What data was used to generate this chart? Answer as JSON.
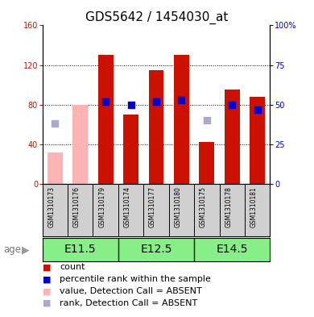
{
  "title": "GDS5642 / 1454030_at",
  "samples": [
    "GSM1310173",
    "GSM1310176",
    "GSM1310179",
    "GSM1310174",
    "GSM1310177",
    "GSM1310180",
    "GSM1310175",
    "GSM1310178",
    "GSM1310181"
  ],
  "count_values": [
    null,
    null,
    130,
    70,
    115,
    130,
    42,
    95,
    88
  ],
  "count_absent": [
    32,
    80,
    null,
    null,
    null,
    null,
    null,
    null,
    null
  ],
  "rank_values": [
    null,
    null,
    52,
    50,
    52,
    53,
    null,
    50,
    47
  ],
  "rank_absent": [
    38,
    null,
    null,
    null,
    null,
    null,
    40,
    null,
    null
  ],
  "age_groups": [
    {
      "label": "E11.5",
      "start": 0,
      "end": 3
    },
    {
      "label": "E12.5",
      "start": 3,
      "end": 6
    },
    {
      "label": "E14.5",
      "start": 6,
      "end": 9
    }
  ],
  "ylim_left": [
    0,
    160
  ],
  "ylim_right": [
    0,
    100
  ],
  "yticks_left": [
    0,
    40,
    80,
    120,
    160
  ],
  "yticks_right": [
    0,
    25,
    50,
    75,
    100
  ],
  "ytick_labels_right": [
    "0",
    "25",
    "50",
    "75",
    "100%"
  ],
  "bar_color_present": "#cc1100",
  "bar_color_absent": "#ffb3b3",
  "rank_color_present": "#0000cc",
  "rank_color_absent": "#aaaacc",
  "grid_color": "black",
  "sample_bg_color": "#d0d0d0",
  "age_bg_color": "#88ee88",
  "age_label_fontsize": 10,
  "title_fontsize": 11,
  "tick_fontsize": 7,
  "legend_fontsize": 8,
  "age_label": "age"
}
